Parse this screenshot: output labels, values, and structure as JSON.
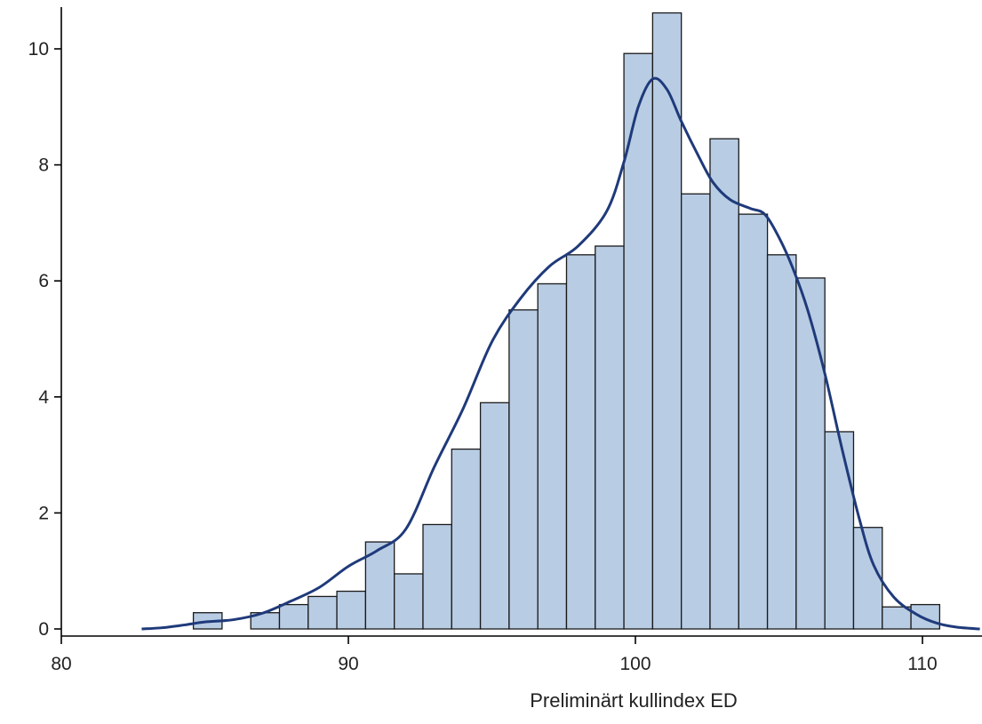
{
  "colors": {
    "bar_fill": "#b8cce4",
    "bar_edge": "#1a1a1a",
    "density_line": "#1f3a7a",
    "axis": "#000000",
    "background": "#ffffff"
  },
  "chart_data": {
    "type": "histogram",
    "title": "",
    "xlabel": "Preliminärt kullindex ED",
    "ylabel": "",
    "xlim": [
      80,
      112
    ],
    "ylim": [
      0,
      10.8
    ],
    "x_ticks": [
      80,
      90,
      100,
      110
    ],
    "y_ticks": [
      0,
      2,
      4,
      6,
      8,
      10
    ],
    "grid": false,
    "legend": "none",
    "bins": [
      {
        "x0": 84.6,
        "x1": 85.6,
        "value": 0.28
      },
      {
        "x0": 86.6,
        "x1": 87.6,
        "value": 0.28
      },
      {
        "x0": 87.6,
        "x1": 88.6,
        "value": 0.42
      },
      {
        "x0": 88.6,
        "x1": 89.6,
        "value": 0.56
      },
      {
        "x0": 89.6,
        "x1": 90.6,
        "value": 0.65
      },
      {
        "x0": 90.6,
        "x1": 91.6,
        "value": 1.5
      },
      {
        "x0": 91.6,
        "x1": 92.6,
        "value": 0.95
      },
      {
        "x0": 92.6,
        "x1": 93.6,
        "value": 1.8
      },
      {
        "x0": 93.6,
        "x1": 94.6,
        "value": 3.1
      },
      {
        "x0": 94.6,
        "x1": 95.6,
        "value": 3.9
      },
      {
        "x0": 95.6,
        "x1": 96.6,
        "value": 5.5
      },
      {
        "x0": 96.6,
        "x1": 97.6,
        "value": 5.95
      },
      {
        "x0": 97.6,
        "x1": 98.6,
        "value": 6.45
      },
      {
        "x0": 98.6,
        "x1": 99.6,
        "value": 6.6
      },
      {
        "x0": 99.6,
        "x1": 100.6,
        "value": 9.92
      },
      {
        "x0": 100.6,
        "x1": 101.6,
        "value": 10.62
      },
      {
        "x0": 101.6,
        "x1": 102.6,
        "value": 7.5
      },
      {
        "x0": 102.6,
        "x1": 103.6,
        "value": 8.45
      },
      {
        "x0": 103.6,
        "x1": 104.6,
        "value": 7.15
      },
      {
        "x0": 104.6,
        "x1": 105.6,
        "value": 6.45
      },
      {
        "x0": 105.6,
        "x1": 106.6,
        "value": 6.05
      },
      {
        "x0": 106.6,
        "x1": 107.6,
        "value": 3.4
      },
      {
        "x0": 107.6,
        "x1": 108.6,
        "value": 1.75
      },
      {
        "x0": 108.6,
        "x1": 109.6,
        "value": 0.38
      },
      {
        "x0": 109.6,
        "x1": 110.6,
        "value": 0.42
      }
    ],
    "density_curve": {
      "x": [
        82.8,
        83.5,
        84.3,
        85.0,
        86.0,
        87.0,
        88.0,
        89.0,
        90.0,
        91.0,
        92.0,
        93.0,
        94.0,
        95.0,
        96.0,
        97.0,
        98.0,
        99.0,
        99.6,
        100.1,
        100.6,
        101.1,
        101.6,
        102.2,
        102.7,
        103.3,
        104.0,
        104.5,
        105.0,
        105.5,
        106.0,
        106.6,
        107.2,
        107.8,
        108.3,
        109.0,
        109.8,
        110.5,
        111.2,
        112.0
      ],
      "y": [
        0.0,
        0.02,
        0.07,
        0.12,
        0.16,
        0.27,
        0.48,
        0.72,
        1.08,
        1.35,
        1.72,
        2.8,
        3.8,
        4.95,
        5.7,
        6.25,
        6.6,
        7.2,
        8.05,
        9.0,
        9.48,
        9.3,
        8.75,
        8.15,
        7.7,
        7.4,
        7.25,
        7.15,
        6.75,
        6.2,
        5.5,
        4.4,
        3.1,
        1.9,
        1.1,
        0.55,
        0.25,
        0.1,
        0.03,
        0.0
      ]
    }
  }
}
